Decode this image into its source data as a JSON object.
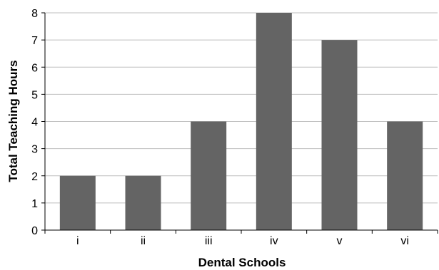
{
  "chart_data": {
    "type": "bar",
    "title": "",
    "xlabel": "Dental Schools",
    "ylabel": "Total Teaching Hours",
    "categories": [
      "i",
      "ii",
      "iii",
      "iv",
      "v",
      "vi"
    ],
    "values": [
      2,
      2,
      4,
      8,
      7,
      4
    ],
    "ylim": [
      0,
      8
    ],
    "yticks": [
      0,
      1,
      2,
      3,
      4,
      5,
      6,
      7,
      8
    ],
    "grid": true,
    "legend": "none",
    "colors": {
      "bar": "#646464",
      "grid": "#bfbfbf",
      "axis": "#000000"
    }
  }
}
